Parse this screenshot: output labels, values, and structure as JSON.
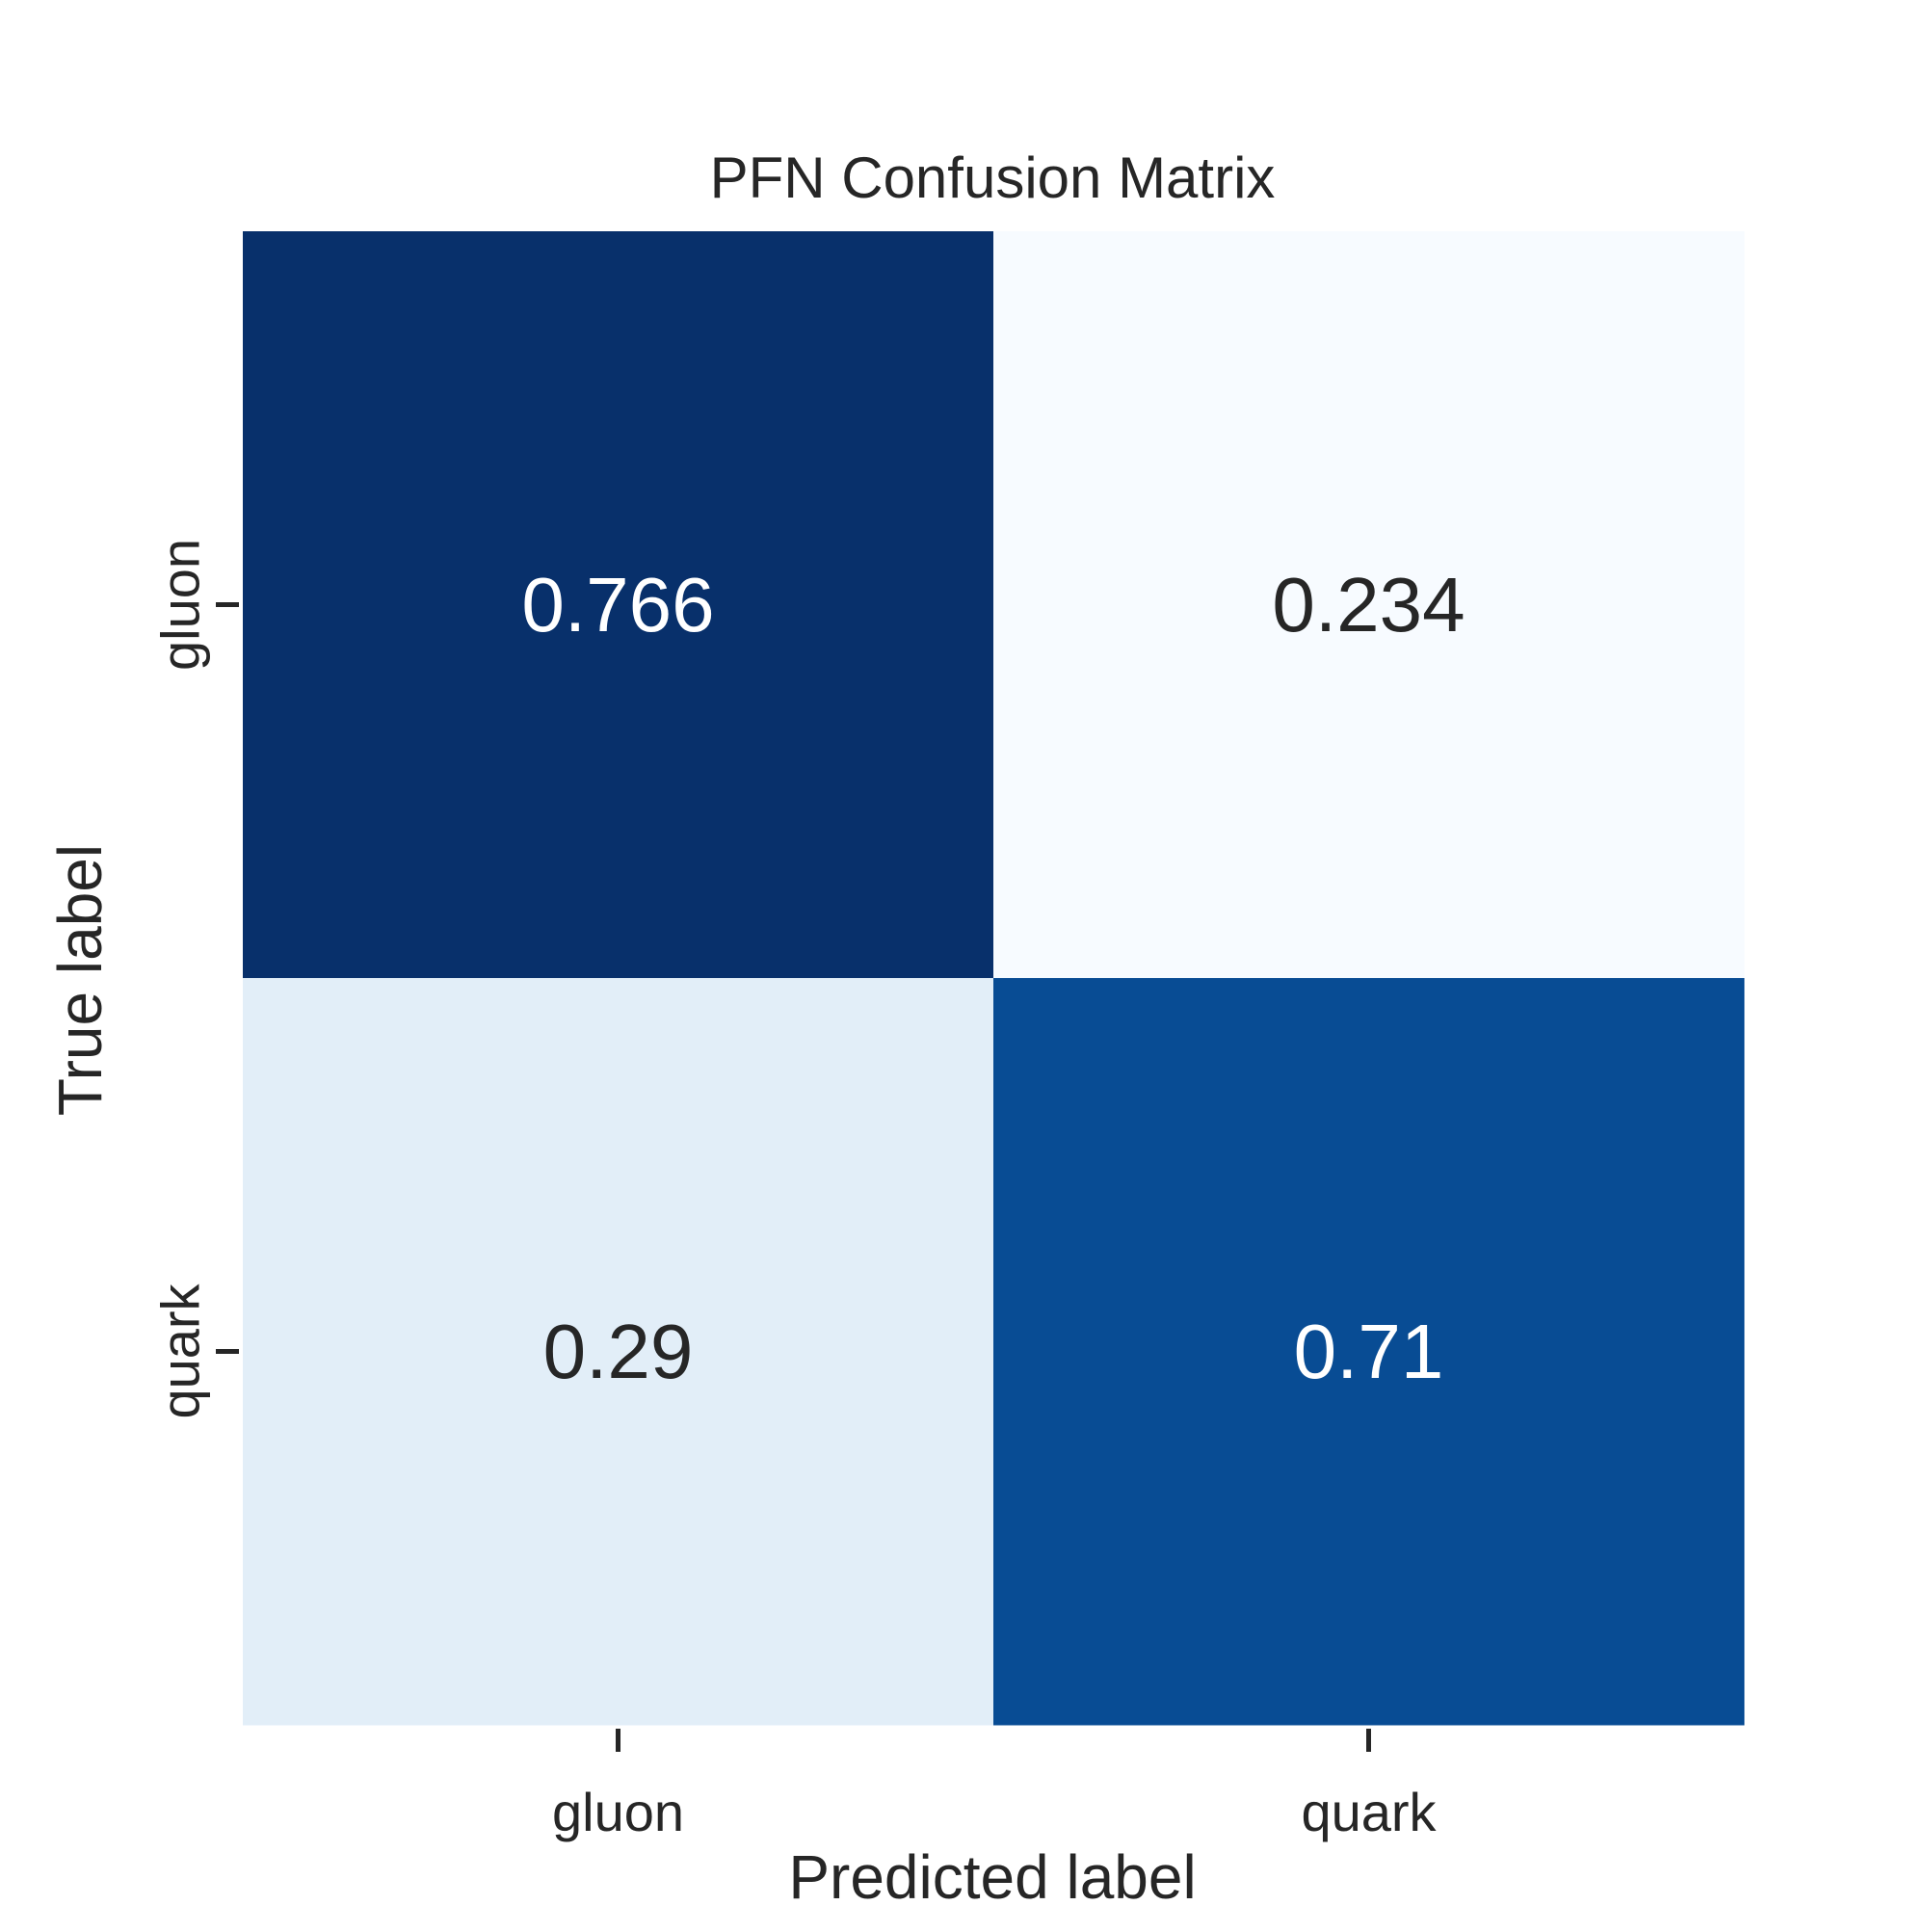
{
  "chart_data": {
    "type": "heatmap",
    "title": "PFN Confusion Matrix",
    "xlabel": "Predicted label",
    "ylabel": "True label",
    "x_categories": [
      "gluon",
      "quark"
    ],
    "y_categories": [
      "gluon",
      "quark"
    ],
    "values": [
      [
        0.766,
        0.234
      ],
      [
        0.29,
        0.71
      ]
    ],
    "value_labels": [
      [
        "0.766",
        "0.234"
      ],
      [
        "0.29",
        "0.71"
      ]
    ],
    "colormap": "Blues",
    "value_range": [
      0.234,
      0.766
    ],
    "colors": {
      "low": "#f7fbff",
      "high": "#08306b",
      "text_dark": "#262626",
      "text_light": "#ffffff"
    }
  }
}
